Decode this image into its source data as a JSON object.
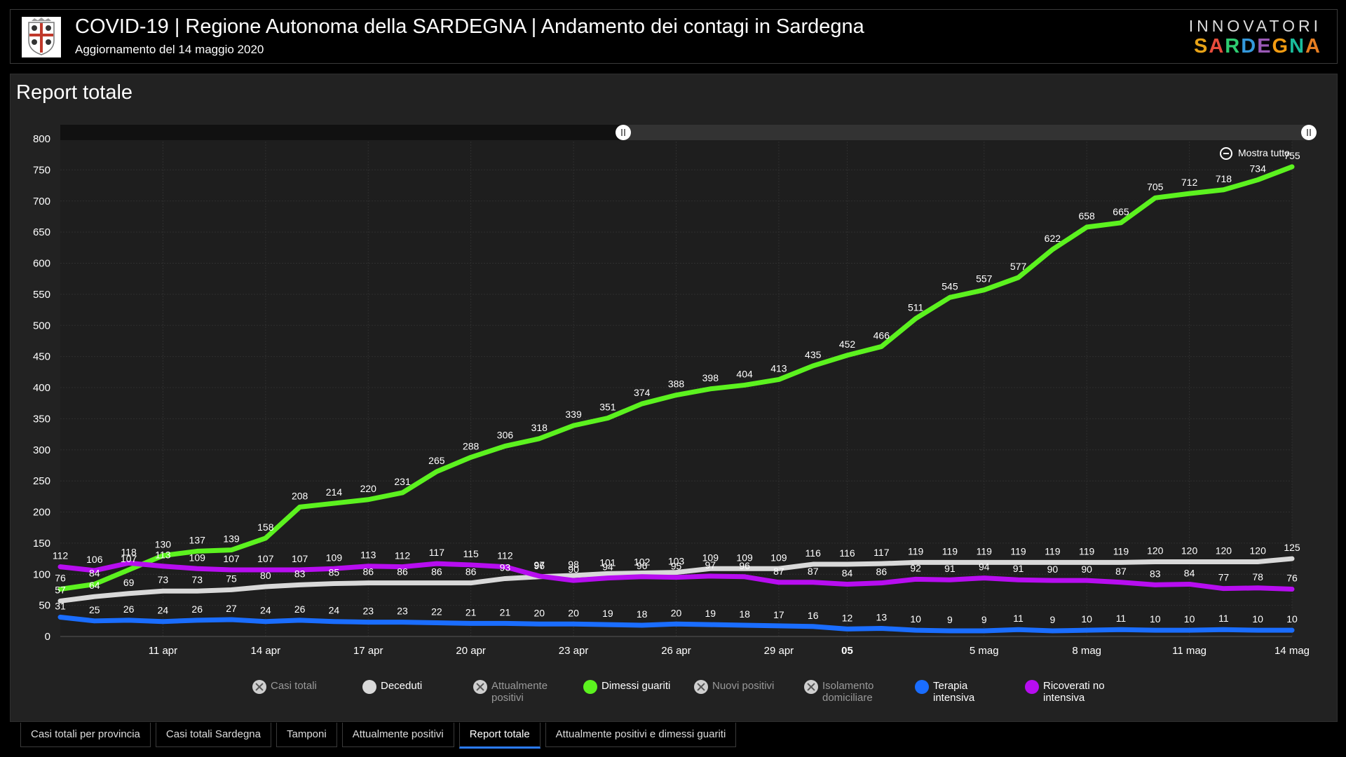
{
  "header": {
    "title": "COVID-19 | Regione Autonoma della SARDEGNA | Andamento dei contagi in Sardegna",
    "subtitle": "Aggiornamento del 14 maggio 2020",
    "brand_top": "INNOVATORI",
    "brand_bottom": "SARDEGNA",
    "brand_colors": [
      "#e8a317",
      "#e74c3c",
      "#2ecc71",
      "#3498db",
      "#9b59b6",
      "#f39c12",
      "#1abc9c",
      "#e67e22"
    ]
  },
  "panel": {
    "title": "Report totale",
    "zoom_label": "Mostra tutto"
  },
  "legend": [
    {
      "label": "Casi totali",
      "color": "#cfcfcf",
      "enabled": false
    },
    {
      "label": "Deceduti",
      "color": "#d9d9d9",
      "enabled": true
    },
    {
      "label": "Attualmente positivi",
      "color": "#cfcfcf",
      "enabled": false
    },
    {
      "label": "Dimessi guariti",
      "color": "#5cf21f",
      "enabled": true
    },
    {
      "label": "Nuovi positivi",
      "color": "#cfcfcf",
      "enabled": false
    },
    {
      "label": "Isolamento domiciliare",
      "color": "#cfcfcf",
      "enabled": false
    },
    {
      "label": "Terapia intensiva",
      "color": "#1a6dff",
      "enabled": true
    },
    {
      "label": "Ricoverati no intensiva",
      "color": "#b70df0",
      "enabled": true
    }
  ],
  "tabs": [
    {
      "label": "Casi totali per provincia",
      "active": false
    },
    {
      "label": "Casi totali Sardegna",
      "active": false
    },
    {
      "label": "Tamponi",
      "active": false
    },
    {
      "label": "Attualmente positivi",
      "active": false
    },
    {
      "label": "Report totale",
      "active": true
    },
    {
      "label": "Attualmente positivi e dimessi guariti",
      "active": false
    }
  ],
  "chart_data": {
    "type": "line",
    "x_start": "2020-04-08",
    "x_end": "2020-05-14",
    "x_ticks": [
      {
        "date": "2020-04-11",
        "label": "11 apr",
        "bold": false
      },
      {
        "date": "2020-04-14",
        "label": "14 apr",
        "bold": false
      },
      {
        "date": "2020-04-17",
        "label": "17 apr",
        "bold": false
      },
      {
        "date": "2020-04-20",
        "label": "20 apr",
        "bold": false
      },
      {
        "date": "2020-04-23",
        "label": "23 apr",
        "bold": false
      },
      {
        "date": "2020-04-26",
        "label": "26 apr",
        "bold": false
      },
      {
        "date": "2020-04-29",
        "label": "29 apr",
        "bold": false
      },
      {
        "date": "2020-05-01",
        "label": "05",
        "bold": true
      },
      {
        "date": "2020-05-05",
        "label": "5 mag",
        "bold": false
      },
      {
        "date": "2020-05-08",
        "label": "8 mag",
        "bold": false
      },
      {
        "date": "2020-05-11",
        "label": "11 mag",
        "bold": false
      },
      {
        "date": "2020-05-14",
        "label": "14 mag",
        "bold": false
      }
    ],
    "ylim": [
      0,
      800
    ],
    "y_ticks": [
      0,
      50,
      100,
      150,
      200,
      250,
      300,
      350,
      400,
      450,
      500,
      550,
      600,
      650,
      700,
      750,
      800
    ],
    "grid": true,
    "series": [
      {
        "name": "Dimessi guariti",
        "color": "#5cf21f",
        "values": [
          76,
          84,
          107,
          130,
          137,
          139,
          158,
          208,
          214,
          220,
          231,
          265,
          288,
          306,
          318,
          339,
          351,
          374,
          388,
          398,
          404,
          413,
          435,
          452,
          466,
          511,
          545,
          557,
          577,
          622,
          658,
          665,
          705,
          712,
          718,
          734,
          755
        ]
      },
      {
        "name": "Deceduti",
        "color": "#d9d9d9",
        "values": [
          57,
          64,
          69,
          73,
          73,
          75,
          80,
          83,
          85,
          86,
          86,
          86,
          86,
          93,
          96,
          98,
          101,
          102,
          103,
          109,
          109,
          109,
          116,
          116,
          117,
          119,
          119,
          119,
          119,
          119,
          119,
          119,
          120,
          120,
          120,
          120,
          125
        ]
      },
      {
        "name": "Ricoverati no intensiva",
        "color": "#b70df0",
        "values": [
          112,
          106,
          118,
          113,
          109,
          107,
          107,
          107,
          109,
          113,
          112,
          117,
          115,
          112,
          97,
          90,
          94,
          96,
          95,
          97,
          96,
          87,
          87,
          84,
          86,
          92,
          91,
          94,
          91,
          90,
          90,
          87,
          83,
          84,
          77,
          78,
          76
        ]
      },
      {
        "name": "Terapia intensiva",
        "color": "#1a6dff",
        "values": [
          31,
          25,
          26,
          24,
          26,
          27,
          24,
          26,
          24,
          23,
          23,
          22,
          21,
          21,
          20,
          20,
          19,
          18,
          20,
          19,
          18,
          17,
          16,
          12,
          13,
          10,
          9,
          9,
          11,
          9,
          10,
          11,
          10,
          10,
          11,
          10,
          10
        ]
      }
    ]
  }
}
